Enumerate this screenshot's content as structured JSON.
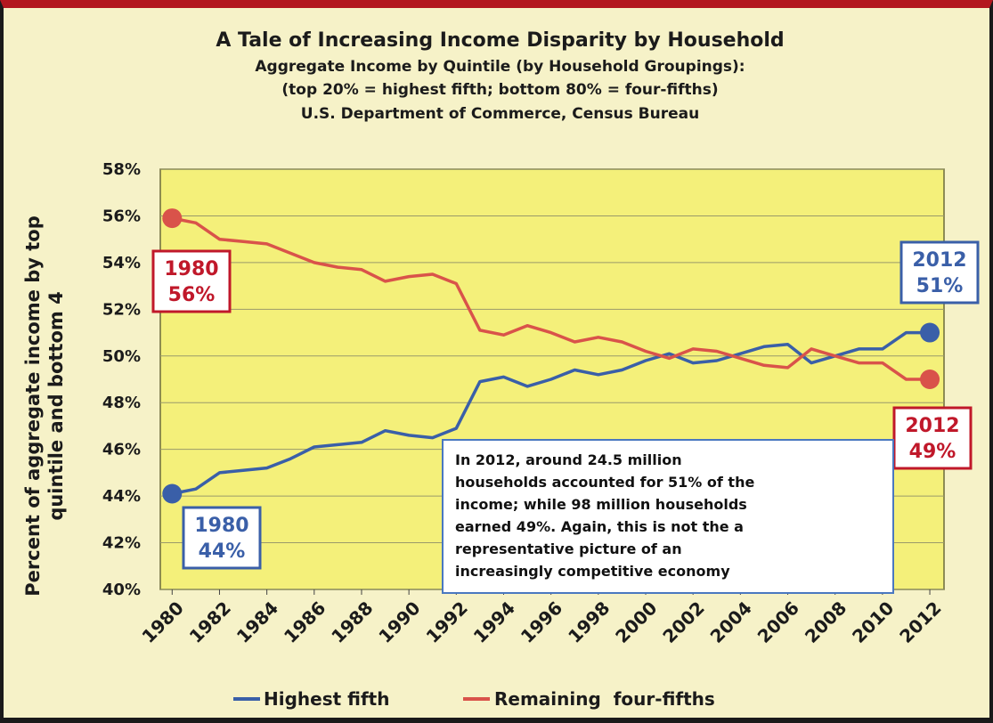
{
  "chart_data": {
    "type": "line",
    "title": "A Tale of Increasing Income Disparity by Household",
    "subtitle_lines": [
      "Aggregate Income by Quintile (by Household Groupings):",
      "(top 20% = highest fifth; bottom 80% = four-fifths)",
      "U.S. Department  of Commerce, Census Bureau"
    ],
    "ylabel_lines": [
      "Percent of aggregate income by top",
      "quintile and bottom 4"
    ],
    "xlabel": "",
    "ylim": [
      40,
      58
    ],
    "y_ticks": [
      40,
      42,
      44,
      46,
      48,
      50,
      52,
      54,
      56,
      58
    ],
    "y_tick_labels": [
      "40%",
      "42%",
      "44%",
      "46%",
      "48%",
      "50%",
      "52%",
      "54%",
      "56%",
      "58%"
    ],
    "x_ticks": [
      1980,
      1982,
      1984,
      1986,
      1988,
      1990,
      1992,
      1994,
      1996,
      1998,
      2000,
      2002,
      2004,
      2006,
      2008,
      2010,
      2012
    ],
    "x_tick_labels": [
      "1980",
      "1982",
      "1984",
      "1986",
      "1988",
      "1990",
      "1992",
      "1994",
      "1996",
      "1998",
      "2000",
      "2002",
      "2004",
      "2006",
      "2008",
      "2010",
      "2012"
    ],
    "x": [
      1980,
      1981,
      1982,
      1983,
      1984,
      1985,
      1986,
      1987,
      1988,
      1989,
      1990,
      1991,
      1992,
      1993,
      1994,
      1995,
      1996,
      1997,
      1998,
      1999,
      2000,
      2001,
      2002,
      2003,
      2004,
      2005,
      2006,
      2007,
      2008,
      2009,
      2010,
      2011,
      2012
    ],
    "series": [
      {
        "name": "Highest fifth",
        "color": "#3a5fa8",
        "values": [
          44.1,
          44.3,
          45.0,
          45.1,
          45.2,
          45.6,
          46.1,
          46.2,
          46.3,
          46.8,
          46.6,
          46.5,
          46.9,
          48.9,
          49.1,
          48.7,
          49.0,
          49.4,
          49.2,
          49.4,
          49.8,
          50.1,
          49.7,
          49.8,
          50.1,
          50.4,
          50.5,
          49.7,
          50.0,
          50.3,
          50.3,
          51.0,
          51.0
        ]
      },
      {
        "name": "Remaining  four-fifths",
        "color": "#d9534a",
        "values": [
          55.9,
          55.7,
          55.0,
          54.9,
          54.8,
          54.4,
          54.0,
          53.8,
          53.7,
          53.2,
          53.4,
          53.5,
          53.1,
          51.1,
          50.9,
          51.3,
          51.0,
          50.6,
          50.8,
          50.6,
          50.2,
          49.9,
          50.3,
          50.2,
          49.9,
          49.6,
          49.5,
          50.3,
          50.0,
          49.7,
          49.7,
          49.0,
          49.0
        ]
      }
    ],
    "grid": true,
    "legend_position": "bottom-center",
    "callouts": [
      {
        "lines": [
          "1980",
          "56%"
        ],
        "color": "#c0182a"
      },
      {
        "lines": [
          "1980",
          "44%"
        ],
        "color": "#3a5fa8"
      },
      {
        "lines": [
          "2012",
          "51%"
        ],
        "color": "#3a5fa8"
      },
      {
        "lines": [
          "2012",
          "49%"
        ],
        "color": "#c0182a"
      }
    ],
    "annotation_lines": [
      "In 2012, around 24.5 million",
      "households accounted for 51% of the",
      "income; while 98 million households",
      "earned 49%.  Again, this is not the a",
      "representative picture of an",
      "increasingly competitive economy"
    ],
    "colors": {
      "plot_bg": "#f4f07a",
      "frame_bg": "#f6f2c8",
      "grid": "#9a9a6a",
      "top_border": "#b3171f"
    }
  }
}
